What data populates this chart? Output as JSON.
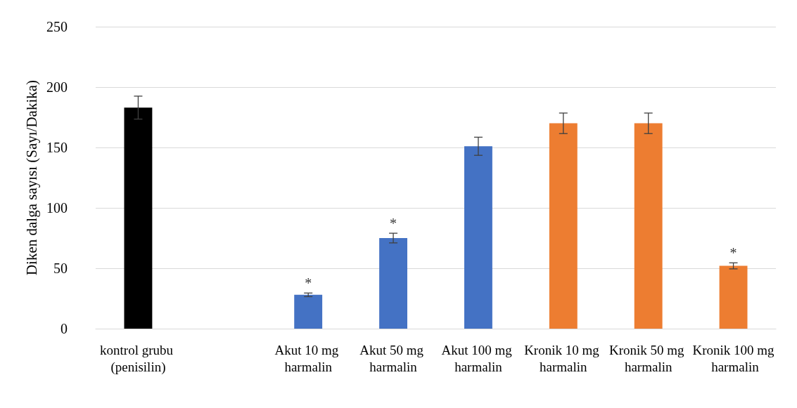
{
  "chart_data": {
    "type": "bar",
    "ylabel": "Diken dalga sayısı (Sayı/Dakika)",
    "categories": [
      "kontrol grubu (penisilin)",
      null,
      "Akut 10 mg harmalin",
      "Akut 50 mg harmalin",
      "Akut 100 mg harmalin",
      "Kronik 10 mg harmalin",
      "Kronik 50 mg harmalin",
      "Kronik 100 mg harmalin"
    ],
    "values": [
      183,
      null,
      28,
      75,
      151,
      170,
      170,
      52
    ],
    "colors": [
      "#000000",
      null,
      "#4472c4",
      "#4472c4",
      "#4472c4",
      "#ed7d31",
      "#ed7d31",
      "#ed7d31"
    ],
    "errors": [
      9.5,
      null,
      1.5,
      4,
      7.5,
      8.5,
      8.5,
      2.5
    ],
    "ylim": [
      0,
      250
    ],
    "yticks": [
      0,
      50,
      100,
      150,
      200,
      250
    ],
    "grid": "y",
    "annotations": [
      {
        "text": "*",
        "x": "Akut 10 mg harmalin",
        "y": 28
      },
      {
        "text": "*",
        "x": "Akut 50 mg harmalin",
        "y": 75
      },
      {
        "text": "*",
        "x": "Kronik 100 mg harmalin",
        "y": 52
      }
    ]
  }
}
